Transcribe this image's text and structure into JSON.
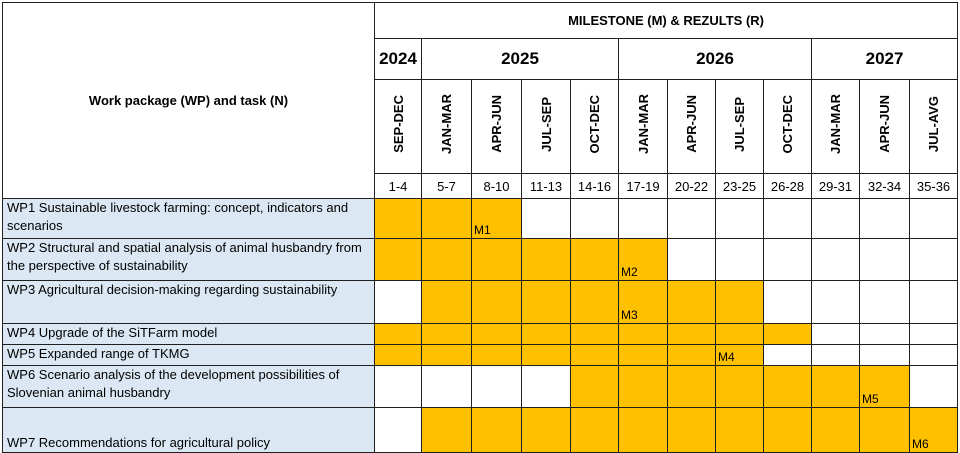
{
  "header": {
    "milestone_title": "MILESTONE (M) & REZULTS (R)",
    "wp_header": "Work package (WP) and task (N)"
  },
  "years": [
    {
      "label": "2024",
      "span": 1
    },
    {
      "label": "2025",
      "span": 4
    },
    {
      "label": "2026",
      "span": 4
    },
    {
      "label": "2027",
      "span": 3
    }
  ],
  "periods": [
    "SEP-DEC",
    "JAN-MAR",
    "APR-JUN",
    "JUL-SEP",
    "OCT-DEC",
    "JAN-MAR",
    "APR-JUN",
    "JUL-SEP",
    "OCT-DEC",
    "JAN-MAR",
    "APR-JUN",
    "JUL-AVG"
  ],
  "months": [
    "1-4",
    "5-7",
    "8-10",
    "11-13",
    "14-16",
    "17-19",
    "20-22",
    "23-25",
    "26-28",
    "29-31",
    "32-34",
    "35-36"
  ],
  "tasks": [
    {
      "label": "WP1 Sustainable livestock farming: concept, indicators and scenarios",
      "filled": [
        1,
        1,
        1,
        0,
        0,
        0,
        0,
        0,
        0,
        0,
        0,
        0
      ],
      "milestones": [
        "",
        "",
        "M1",
        "",
        "",
        "",
        "",
        "",
        "",
        "",
        "",
        ""
      ]
    },
    {
      "label": "WP2 Structural and spatial analysis of animal husbandry from the perspective of sustainability",
      "filled": [
        1,
        1,
        1,
        1,
        1,
        1,
        0,
        0,
        0,
        0,
        0,
        0
      ],
      "milestones": [
        "",
        "",
        "",
        "",
        "",
        "M2",
        "",
        "",
        "",
        "",
        "",
        ""
      ]
    },
    {
      "label": "WP3 Agricultural decision-making regarding sustainability",
      "filled": [
        0,
        1,
        1,
        1,
        1,
        1,
        1,
        1,
        0,
        0,
        0,
        0
      ],
      "milestones": [
        "",
        "",
        "",
        "",
        "",
        "M3",
        "",
        "",
        "",
        "",
        "",
        ""
      ]
    },
    {
      "label": "WP4 Upgrade of the SiTFarm model",
      "filled": [
        1,
        1,
        1,
        1,
        1,
        1,
        1,
        1,
        1,
        0,
        0,
        0
      ],
      "milestones": [
        "",
        "",
        "",
        "",
        "",
        "",
        "",
        "",
        "",
        "",
        "",
        ""
      ]
    },
    {
      "label": "WP5 Expanded range of TKMG",
      "filled": [
        1,
        1,
        1,
        1,
        1,
        1,
        1,
        1,
        0,
        0,
        0,
        0
      ],
      "milestones": [
        "",
        "",
        "",
        "",
        "",
        "",
        "",
        "M4",
        "",
        "",
        "",
        ""
      ]
    },
    {
      "label": "WP6 Scenario analysis of the development possibilities of Slovenian animal husbandry",
      "filled": [
        0,
        0,
        0,
        0,
        1,
        1,
        1,
        1,
        1,
        1,
        1,
        0
      ],
      "milestones": [
        "",
        "",
        "",
        "",
        "",
        "",
        "",
        "",
        "",
        "",
        "M5",
        ""
      ]
    },
    {
      "label": "WP7 Recommendations for agricultural policy",
      "filled": [
        0,
        1,
        1,
        1,
        1,
        1,
        1,
        1,
        1,
        1,
        1,
        1
      ],
      "milestones": [
        "",
        "",
        "",
        "",
        "",
        "",
        "",
        "",
        "",
        "",
        "",
        "M6"
      ]
    }
  ],
  "colors": {
    "task_bg": "#dbe8f4",
    "bar_fill": "#ffc000",
    "grid": "#1f1f1f",
    "marker": "#2e9d3a"
  }
}
